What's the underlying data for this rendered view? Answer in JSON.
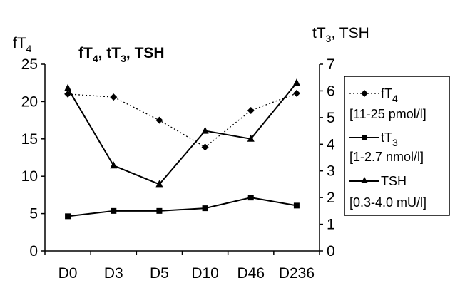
{
  "chart_data": {
    "type": "line",
    "title_parts": [
      "fT",
      "4",
      ", tT",
      "3",
      ", TSH"
    ],
    "left_axis_label_parts": [
      "fT",
      "4"
    ],
    "right_axis_label_parts": [
      "tT",
      "3",
      ", TSH"
    ],
    "categories": [
      "D0",
      "D3",
      "D5",
      "D10",
      "D46",
      "D236"
    ],
    "left_axis": {
      "ylim": [
        0,
        25
      ],
      "ticks": [
        "0",
        "5",
        "10",
        "15",
        "20",
        "25"
      ]
    },
    "right_axis": {
      "ylim": [
        0,
        7
      ],
      "ticks": [
        "0",
        "1",
        "2",
        "3",
        "4",
        "5",
        "6",
        "7"
      ]
    },
    "grid": false,
    "legend_position": "right",
    "series": [
      {
        "name_parts": [
          "fT",
          "4"
        ],
        "range": "[11-25 pmol/l]",
        "axis": "left",
        "marker": "diamond",
        "line_style": "dotted",
        "color": "#000000",
        "values": [
          21.0,
          20.6,
          17.5,
          13.9,
          18.8,
          21.1
        ]
      },
      {
        "name_parts": [
          "tT",
          "3"
        ],
        "range": "[1-2.7 nmol/l]",
        "axis": "right",
        "marker": "square",
        "line_style": "solid",
        "color": "#000000",
        "values": [
          1.3,
          1.5,
          1.5,
          1.6,
          2.0,
          1.7
        ]
      },
      {
        "name_parts": [
          "TSH"
        ],
        "range": "[0.3-4.0 mU/l]",
        "axis": "right",
        "marker": "triangle",
        "line_style": "solid",
        "color": "#000000",
        "values": [
          6.1,
          3.2,
          2.5,
          4.5,
          4.2,
          6.3
        ]
      }
    ]
  }
}
